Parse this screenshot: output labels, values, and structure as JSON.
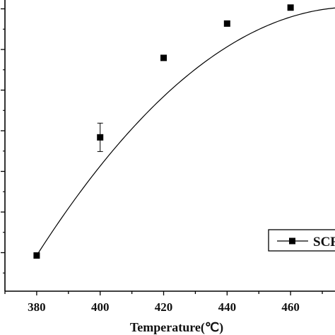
{
  "chart_data": {
    "type": "line",
    "xlabel": "Temperature(℃)",
    "ylabel": "",
    "xlim": [
      370,
      474
    ],
    "x_ticks": [
      380,
      400,
      420,
      440,
      460
    ],
    "x_minor_step": 10,
    "y_major_count": 6,
    "grid": false,
    "legend": {
      "position": "bottom-right",
      "entries": [
        "SCR"
      ]
    },
    "series": [
      {
        "name": "SCR",
        "marker": "square",
        "x": [
          380,
          400,
          420,
          440,
          460
        ],
        "y": [
          0.0,
          0.5,
          0.8,
          1.0,
          1.2
        ],
        "y_norm": [
          0.037,
          0.495,
          0.803,
          0.936,
          0.998
        ],
        "error_bars": [
          0.0,
          0.055,
          0.0,
          0.0,
          0.0
        ]
      }
    ],
    "colors": {
      "line": "#000000",
      "marker": "#000000",
      "background": "#ffffff"
    }
  }
}
